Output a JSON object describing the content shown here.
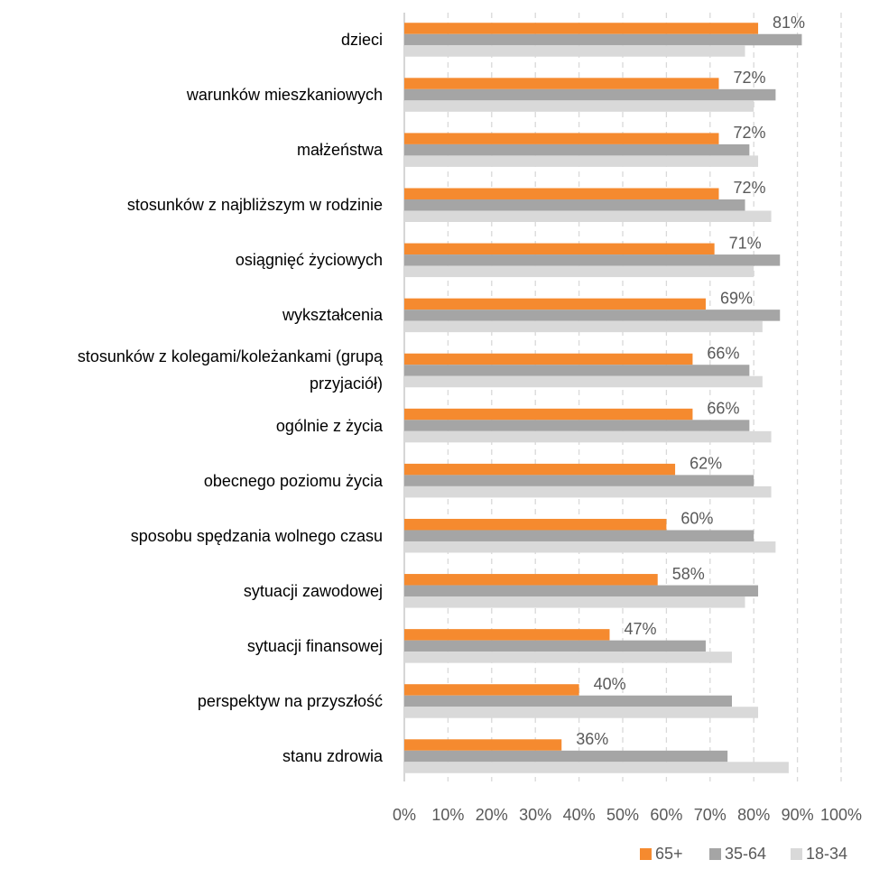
{
  "chart_data": {
    "type": "bar",
    "orientation": "horizontal",
    "categories": [
      "dzieci",
      "warunków mieszkaniowych",
      "małżeństwa",
      "stosunków z najbliższym w rodzinie",
      "osiągnięć życiowych",
      "wykształcenia",
      "stosunków z kolegami/koleżankami (grupą przyjaciół)",
      "ogólnie z życia",
      "obecnego poziomu życia",
      "sposobu spędzania wolnego czasu",
      "sytuacji zawodowej",
      "sytuacji finansowej",
      "perspektyw na przyszłość",
      "stanu zdrowia"
    ],
    "series": [
      {
        "name": "65+",
        "color": "#f58a2f",
        "values": [
          81,
          72,
          72,
          72,
          71,
          69,
          66,
          66,
          62,
          60,
          58,
          47,
          40,
          36
        ],
        "value_labels": [
          "81%",
          "72%",
          "72%",
          "72%",
          "71%",
          "69%",
          "66%",
          "66%",
          "62%",
          "60%",
          "58%",
          "47%",
          "40%",
          "36%"
        ]
      },
      {
        "name": "35-64",
        "color": "#a5a5a5",
        "values": [
          91,
          85,
          79,
          78,
          86,
          86,
          79,
          79,
          80,
          80,
          81,
          69,
          75,
          74
        ]
      },
      {
        "name": "18-34",
        "color": "#d9d9d9",
        "values": [
          78,
          80,
          81,
          84,
          80,
          82,
          82,
          84,
          84,
          85,
          78,
          75,
          81,
          88
        ]
      }
    ],
    "xlim": [
      0,
      100
    ],
    "xticks": [
      {
        "value": 0,
        "label": "0%"
      },
      {
        "value": 10,
        "label": "10%"
      },
      {
        "value": 20,
        "label": "20%"
      },
      {
        "value": 30,
        "label": "30%"
      },
      {
        "value": 40,
        "label": "40%"
      },
      {
        "value": 50,
        "label": "50%"
      },
      {
        "value": 60,
        "label": "60%"
      },
      {
        "value": 70,
        "label": "70%"
      },
      {
        "value": 80,
        "label": "80%"
      },
      {
        "value": 90,
        "label": "90%"
      },
      {
        "value": 100,
        "label": "100%"
      }
    ],
    "grid": true,
    "legend": "bottom-right"
  }
}
